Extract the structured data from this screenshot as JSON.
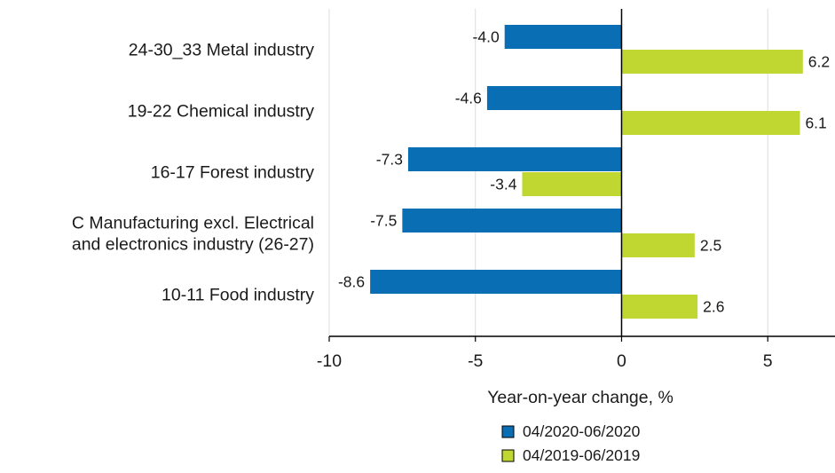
{
  "chart_data": {
    "type": "bar",
    "orientation": "horizontal",
    "categories": [
      [
        "24-30_33 Metal industry"
      ],
      [
        "19-22 Chemical industry"
      ],
      [
        "16-17 Forest industry"
      ],
      [
        "C Manufacturing excl. Electrical",
        "and electronics industry (26-27)"
      ],
      [
        "10-11 Food industry"
      ]
    ],
    "series": [
      {
        "name": "04/2020-06/2020",
        "color": "#0a6eb4",
        "values": [
          -4.0,
          -4.6,
          -7.3,
          -7.5,
          -8.6
        ],
        "labels": [
          "-4.0",
          "-4.6",
          "-7.3",
          "-7.5",
          "-8.6"
        ]
      },
      {
        "name": "04/2019-06/2019",
        "color": "#bfd730",
        "values": [
          6.2,
          6.1,
          -3.4,
          2.5,
          2.6
        ],
        "labels": [
          "6.2",
          "6.1",
          "-3.4",
          "2.5",
          "2.6"
        ]
      }
    ],
    "xlabel": "Year-on-year change, %",
    "xlim": [
      -10,
      7.3
    ],
    "xticks": [
      -10,
      -5,
      0,
      5
    ],
    "xtick_labels": [
      "-10",
      "-5",
      "0",
      "5"
    ],
    "grid": true,
    "legend_position": "bottom"
  }
}
